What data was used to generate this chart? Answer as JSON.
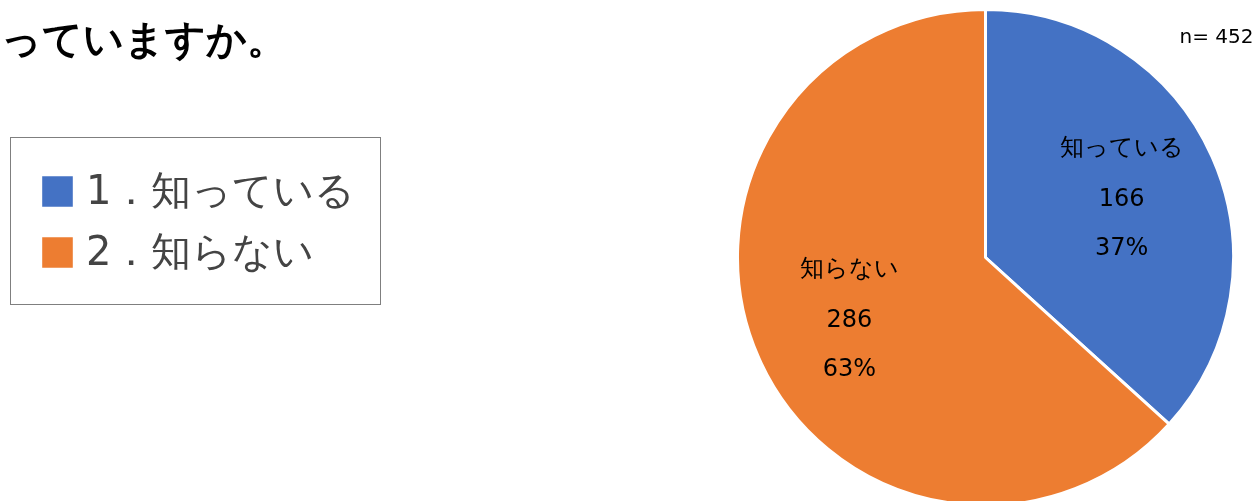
{
  "chart_data": {
    "type": "pie",
    "title": "っていますか。",
    "categories": [
      "1．知っている",
      "2．知らない"
    ],
    "values": [
      166,
      286
    ],
    "colors": [
      "#4472c4",
      "#ed7d31"
    ],
    "value_labels": [
      "知っている\n166\n37%",
      "知らない\n286\n63%"
    ],
    "annotations": [
      "n= 452"
    ],
    "legend": "left"
  }
}
